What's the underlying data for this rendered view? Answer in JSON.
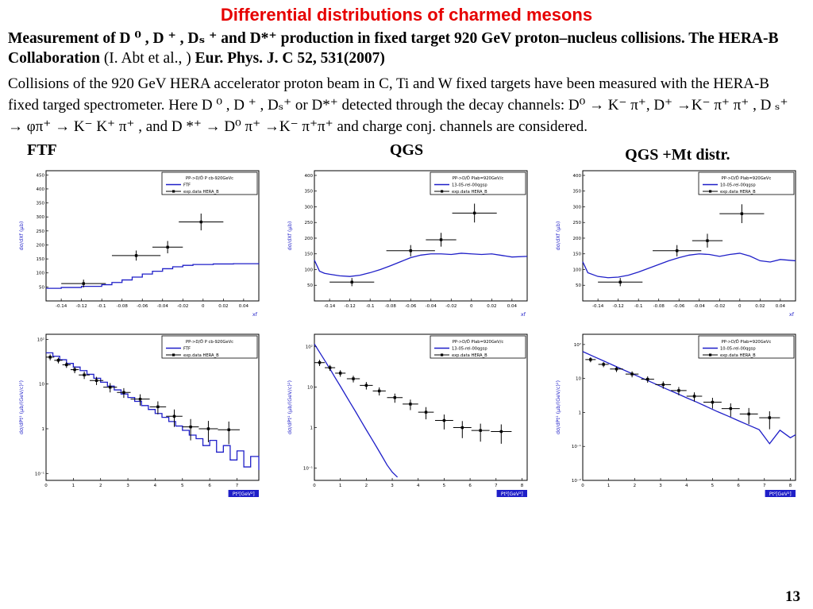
{
  "slide": {
    "title": "Differential distributions of charmed mesons",
    "page_number": "13"
  },
  "intro": {
    "bold1": "Measurement of D ⁰ , D ⁺ , Dₛ ⁺ and D*⁺ production in fixed target 920 GeV proton–nucleus collisions. The HERA-B Collaboration ",
    "authors": "(I. Abt et al., ) ",
    "journal": " Eur. Phys. J. C 52, 531(2007)",
    "description": "Collisions of the 920 GeV HERA accelerator proton beam in C, Ti and W fixed targets have been measured with the HERA-B fixed targed spectrometer. Here  D ⁰ , D ⁺ , Dₛ⁺ or D*⁺ detected through the decay channels:  D⁰ → K⁻ π⁺, D⁺ →K⁻ π⁺ π⁺ , D ₛ⁺ → φπ⁺ → K⁻ K⁺ π⁺ , and D *⁺ → D⁰ π⁺ →K⁻ π⁺π⁺  and charge conj. channels are considered."
  },
  "columns": [
    "FTF",
    "QGS",
    "QGS +Mt distr."
  ],
  "colors": {
    "accent_blue": "#1f1fc8",
    "title_red": "#e60000",
    "data_black": "#000000"
  },
  "chart_data": [
    {
      "id": "ftf-xf",
      "type": "line",
      "scale": "linear",
      "line_style": "step",
      "xlim": [
        -0.155,
        0.055
      ],
      "ylim": [
        0,
        465
      ],
      "xticks": [
        -0.14,
        -0.12,
        -0.1,
        -0.08,
        -0.06,
        -0.04,
        -0.02,
        0,
        0.02,
        0.04
      ],
      "xtick_labels": [
        "-0.14",
        "-0.12",
        "-0.1",
        "-0.08",
        "-0.06",
        "-0.04",
        "-0.02",
        "0",
        "0.02",
        "0.04"
      ],
      "ytick_values": [
        50,
        100,
        150,
        200,
        250,
        300,
        350,
        400,
        450
      ],
      "ytick_labels": [
        "50",
        "100",
        "150",
        "200",
        "250",
        "300",
        "350",
        "400",
        "450"
      ],
      "xlabel": "xf",
      "xlabel_box": false,
      "ylabel": "dσ/dXf (μb)",
      "legend": [
        "PP->D/D̄ P cb-920GeVc",
        "FTF",
        "exp.data HERA_B"
      ],
      "model_line": [
        [
          -0.155,
          45
        ],
        [
          -0.14,
          48
        ],
        [
          -0.12,
          52
        ],
        [
          -0.1,
          58
        ],
        [
          -0.09,
          66
        ],
        [
          -0.08,
          75
        ],
        [
          -0.07,
          85
        ],
        [
          -0.06,
          96
        ],
        [
          -0.05,
          106
        ],
        [
          -0.04,
          115
        ],
        [
          -0.03,
          122
        ],
        [
          -0.02,
          127
        ],
        [
          -0.01,
          130
        ],
        [
          0.01,
          132
        ],
        [
          0.03,
          133
        ],
        [
          0.055,
          132
        ]
      ],
      "data_points": [
        {
          "x": -0.118,
          "y": 62,
          "ex": 0.022,
          "ey": 14
        },
        {
          "x": -0.066,
          "y": 162,
          "ex": 0.024,
          "ey": 18
        },
        {
          "x": -0.035,
          "y": 192,
          "ex": 0.015,
          "ey": 22
        },
        {
          "x": -0.002,
          "y": 282,
          "ex": 0.022,
          "ey": 30
        }
      ]
    },
    {
      "id": "qgs-xf",
      "type": "line",
      "scale": "linear",
      "line_style": "linear",
      "xlim": [
        -0.155,
        0.055
      ],
      "ylim": [
        0,
        415
      ],
      "xticks": [
        -0.14,
        -0.12,
        -0.1,
        -0.08,
        -0.06,
        -0.04,
        -0.02,
        0,
        0.02,
        0.04
      ],
      "xtick_labels": [
        "-0.14",
        "-0.12",
        "-0.1",
        "-0.08",
        "-0.06",
        "-0.04",
        "-0.02",
        "0",
        "0.02",
        "0.04"
      ],
      "ytick_values": [
        50,
        100,
        150,
        200,
        250,
        300,
        350,
        400
      ],
      "ytick_labels": [
        "50",
        "100",
        "150",
        "200",
        "250",
        "300",
        "350",
        "400"
      ],
      "xlabel": "xf",
      "xlabel_box": false,
      "ylabel": "dσ/dXf (μb)",
      "legend": [
        "PP->D/D̄ Plab=920GeV/c",
        "13-05-rel-00qgsp",
        "exp.data HERA_B"
      ],
      "model_line": [
        [
          -0.155,
          130
        ],
        [
          -0.15,
          95
        ],
        [
          -0.145,
          88
        ],
        [
          -0.14,
          85
        ],
        [
          -0.13,
          80
        ],
        [
          -0.12,
          78
        ],
        [
          -0.11,
          82
        ],
        [
          -0.1,
          90
        ],
        [
          -0.09,
          100
        ],
        [
          -0.08,
          112
        ],
        [
          -0.07,
          125
        ],
        [
          -0.06,
          138
        ],
        [
          -0.05,
          146
        ],
        [
          -0.04,
          150
        ],
        [
          -0.03,
          150
        ],
        [
          -0.02,
          148
        ],
        [
          -0.01,
          152
        ],
        [
          0.0,
          150
        ],
        [
          0.01,
          148
        ],
        [
          0.02,
          150
        ],
        [
          0.03,
          145
        ],
        [
          0.04,
          140
        ],
        [
          0.055,
          142
        ]
      ],
      "data_points": [
        {
          "x": -0.118,
          "y": 60,
          "ex": 0.022,
          "ey": 13
        },
        {
          "x": -0.06,
          "y": 160,
          "ex": 0.024,
          "ey": 18
        },
        {
          "x": -0.03,
          "y": 195,
          "ex": 0.015,
          "ey": 22
        },
        {
          "x": 0.003,
          "y": 280,
          "ex": 0.022,
          "ey": 30
        }
      ]
    },
    {
      "id": "qgsmt-xf",
      "type": "line",
      "scale": "linear",
      "line_style": "linear",
      "xlim": [
        -0.155,
        0.055
      ],
      "ylim": [
        0,
        415
      ],
      "xticks": [
        -0.14,
        -0.12,
        -0.1,
        -0.08,
        -0.06,
        -0.04,
        -0.02,
        0,
        0.02,
        0.04
      ],
      "xtick_labels": [
        "-0.14",
        "-0.12",
        "-0.1",
        "-0.08",
        "-0.06",
        "-0.04",
        "-0.02",
        "0",
        "0.02",
        "0.04"
      ],
      "ytick_values": [
        50,
        100,
        150,
        200,
        250,
        300,
        350,
        400
      ],
      "ytick_labels": [
        "50",
        "100",
        "150",
        "200",
        "250",
        "300",
        "350",
        "400"
      ],
      "xlabel": "xf",
      "xlabel_box": false,
      "ylabel": "dσ/dXf (μb)",
      "legend": [
        "PP->D/D̄ Plab=920GeVc",
        "10-05-rel-00qgsp",
        "exp.data HERA_B"
      ],
      "model_line": [
        [
          -0.155,
          125
        ],
        [
          -0.15,
          90
        ],
        [
          -0.14,
          78
        ],
        [
          -0.13,
          74
        ],
        [
          -0.12,
          76
        ],
        [
          -0.11,
          82
        ],
        [
          -0.1,
          92
        ],
        [
          -0.09,
          104
        ],
        [
          -0.08,
          116
        ],
        [
          -0.07,
          128
        ],
        [
          -0.06,
          138
        ],
        [
          -0.05,
          146
        ],
        [
          -0.04,
          150
        ],
        [
          -0.03,
          148
        ],
        [
          -0.02,
          142
        ],
        [
          -0.01,
          148
        ],
        [
          0.0,
          152
        ],
        [
          0.01,
          143
        ],
        [
          0.02,
          128
        ],
        [
          0.03,
          124
        ],
        [
          0.04,
          132
        ],
        [
          0.055,
          128
        ]
      ],
      "data_points": [
        {
          "x": -0.118,
          "y": 60,
          "ex": 0.022,
          "ey": 13
        },
        {
          "x": -0.062,
          "y": 160,
          "ex": 0.024,
          "ey": 18
        },
        {
          "x": -0.032,
          "y": 192,
          "ex": 0.015,
          "ey": 22
        },
        {
          "x": 0.002,
          "y": 278,
          "ex": 0.022,
          "ey": 30
        }
      ]
    },
    {
      "id": "ftf-pt2",
      "type": "line",
      "scale": "log",
      "line_style": "step",
      "xlim": [
        0,
        7.8
      ],
      "ylim": [
        0.07,
        130
      ],
      "xticks": [
        0,
        1,
        2,
        3,
        4,
        5,
        6,
        7
      ],
      "xtick_labels": [
        "0",
        "1",
        "2",
        "3",
        "4",
        "5",
        "6",
        "7"
      ],
      "ytick_values": [
        100,
        10,
        1,
        0.1
      ],
      "ytick_labels": [
        "10²",
        "10",
        "1",
        "10⁻¹"
      ],
      "xlabel": "Pt²[GeV²]",
      "xlabel_box": true,
      "ylabel": "dσ/dPt² (μb/(GeV/c)²)",
      "legend": [
        "PP->D/D̄ P cb-920GeVc",
        "FTF",
        "exp.data HERA_B"
      ],
      "model_line": [
        [
          0,
          50
        ],
        [
          0.25,
          42
        ],
        [
          0.5,
          35
        ],
        [
          0.75,
          29
        ],
        [
          1,
          24
        ],
        [
          1.25,
          20
        ],
        [
          1.5,
          16.5
        ],
        [
          1.75,
          13.5
        ],
        [
          2,
          11
        ],
        [
          2.25,
          9
        ],
        [
          2.5,
          7.4
        ],
        [
          2.75,
          6
        ],
        [
          3,
          5
        ],
        [
          3.25,
          4.1
        ],
        [
          3.5,
          3.3
        ],
        [
          3.75,
          2.7
        ],
        [
          4,
          2.2
        ],
        [
          4.25,
          1.8
        ],
        [
          4.5,
          1.45
        ],
        [
          4.75,
          1.15
        ],
        [
          5,
          0.92
        ],
        [
          5.25,
          0.72
        ],
        [
          5.5,
          0.6
        ],
        [
          5.75,
          0.42
        ],
        [
          6,
          0.55
        ],
        [
          6.25,
          0.3
        ],
        [
          6.5,
          0.42
        ],
        [
          6.75,
          0.2
        ],
        [
          7,
          0.32
        ],
        [
          7.25,
          0.14
        ],
        [
          7.5,
          0.24
        ],
        [
          7.8,
          0.12
        ]
      ],
      "data_points": [
        {
          "x": 0.15,
          "y": 40,
          "ex": 0.15,
          "ey": 6
        },
        {
          "x": 0.45,
          "y": 34,
          "ex": 0.15,
          "ey": 5
        },
        {
          "x": 0.75,
          "y": 27,
          "ex": 0.15,
          "ey": 4
        },
        {
          "x": 1.05,
          "y": 21,
          "ex": 0.15,
          "ey": 3.5
        },
        {
          "x": 1.4,
          "y": 16,
          "ex": 0.2,
          "ey": 3
        },
        {
          "x": 1.85,
          "y": 12,
          "ex": 0.25,
          "ey": 2.5
        },
        {
          "x": 2.35,
          "y": 8.5,
          "ex": 0.25,
          "ey": 2
        },
        {
          "x": 2.85,
          "y": 6.5,
          "ex": 0.25,
          "ey": 1.6
        },
        {
          "x": 3.45,
          "y": 4.6,
          "ex": 0.35,
          "ey": 1.3
        },
        {
          "x": 4.1,
          "y": 3.1,
          "ex": 0.3,
          "ey": 1
        },
        {
          "x": 4.7,
          "y": 1.9,
          "ex": 0.3,
          "ey": 0.8
        },
        {
          "x": 5.3,
          "y": 1.1,
          "ex": 0.3,
          "ey": 0.55
        },
        {
          "x": 5.95,
          "y": 1.0,
          "ex": 0.35,
          "ey": 0.5
        },
        {
          "x": 6.7,
          "y": 0.95,
          "ex": 0.4,
          "ey": 0.5
        }
      ]
    },
    {
      "id": "qgs-pt2",
      "type": "line",
      "scale": "log",
      "line_style": "linear",
      "xlim": [
        0,
        8.2
      ],
      "ylim": [
        0.05,
        200
      ],
      "xticks": [
        0,
        1,
        2,
        3,
        4,
        5,
        6,
        7,
        8
      ],
      "xtick_labels": [
        "0",
        "1",
        "2",
        "3",
        "4",
        "5",
        "6",
        "7",
        "8"
      ],
      "ytick_values": [
        100,
        10,
        1,
        0.1
      ],
      "ytick_labels": [
        "10²",
        "10",
        "1",
        "10⁻¹"
      ],
      "xlabel": "Pt²[GeV²]",
      "xlabel_box": true,
      "ylabel": "dσ/dPt² (μb/(GeV/c)²)",
      "legend": [
        "PP->D/D̄ Plab=920GeV/c",
        "13-05-rel-00qgsp",
        "exp.data HERA_B"
      ],
      "model_line": [
        [
          0,
          115
        ],
        [
          0.2,
          72
        ],
        [
          0.4,
          45
        ],
        [
          0.6,
          28
        ],
        [
          0.8,
          17
        ],
        [
          1,
          10.5
        ],
        [
          1.2,
          6.4
        ],
        [
          1.4,
          3.9
        ],
        [
          1.6,
          2.4
        ],
        [
          1.8,
          1.45
        ],
        [
          2,
          0.88
        ],
        [
          2.2,
          0.54
        ],
        [
          2.4,
          0.33
        ],
        [
          2.6,
          0.2
        ],
        [
          2.8,
          0.12
        ],
        [
          3,
          0.08
        ],
        [
          3.2,
          0.06
        ]
      ],
      "data_points": [
        {
          "x": 0.2,
          "y": 40,
          "ex": 0.2,
          "ey": 7
        },
        {
          "x": 0.6,
          "y": 30,
          "ex": 0.2,
          "ey": 5
        },
        {
          "x": 1.0,
          "y": 22,
          "ex": 0.2,
          "ey": 4
        },
        {
          "x": 1.5,
          "y": 16,
          "ex": 0.25,
          "ey": 3
        },
        {
          "x": 2.0,
          "y": 11,
          "ex": 0.25,
          "ey": 2.3
        },
        {
          "x": 2.5,
          "y": 8,
          "ex": 0.25,
          "ey": 1.8
        },
        {
          "x": 3.1,
          "y": 5.5,
          "ex": 0.3,
          "ey": 1.4
        },
        {
          "x": 3.7,
          "y": 3.8,
          "ex": 0.3,
          "ey": 1.1
        },
        {
          "x": 4.3,
          "y": 2.4,
          "ex": 0.3,
          "ey": 0.8
        },
        {
          "x": 5.0,
          "y": 1.5,
          "ex": 0.35,
          "ey": 0.6
        },
        {
          "x": 5.7,
          "y": 1.0,
          "ex": 0.35,
          "ey": 0.45
        },
        {
          "x": 6.4,
          "y": 0.85,
          "ex": 0.35,
          "ey": 0.4
        },
        {
          "x": 7.2,
          "y": 0.8,
          "ex": 0.4,
          "ey": 0.4
        }
      ]
    },
    {
      "id": "qgsmt-pt2",
      "type": "line",
      "scale": "log",
      "line_style": "linear",
      "xlim": [
        0,
        8.2
      ],
      "ylim": [
        0.01,
        200
      ],
      "xticks": [
        0,
        1,
        2,
        3,
        4,
        5,
        6,
        7,
        8
      ],
      "xtick_labels": [
        "0",
        "1",
        "2",
        "3",
        "4",
        "5",
        "6",
        "7",
        "8"
      ],
      "ytick_values": [
        100,
        10,
        1,
        0.1,
        0.01
      ],
      "ytick_labels": [
        "10²",
        "10",
        "1",
        "10⁻¹",
        "10⁻²"
      ],
      "xlabel": "Pt²[GeV²]",
      "xlabel_box": true,
      "ylabel": "dσ/dPt² (μb/(GeV/c)²)",
      "legend": [
        "PP->D/D̄ Plab=920GeVc",
        "10-05-rel-00qgsp",
        "exp.data HERA_B"
      ],
      "model_line": [
        [
          0,
          62
        ],
        [
          0.4,
          45
        ],
        [
          0.8,
          33
        ],
        [
          1.2,
          24
        ],
        [
          1.6,
          17.5
        ],
        [
          2,
          12.8
        ],
        [
          2.4,
          9.4
        ],
        [
          2.8,
          6.9
        ],
        [
          3.2,
          5
        ],
        [
          3.6,
          3.7
        ],
        [
          4,
          2.7
        ],
        [
          4.4,
          2
        ],
        [
          4.8,
          1.45
        ],
        [
          5.2,
          1.05
        ],
        [
          5.6,
          0.78
        ],
        [
          6,
          0.57
        ],
        [
          6.4,
          0.42
        ],
        [
          6.8,
          0.31
        ],
        [
          7.2,
          0.12
        ],
        [
          7.6,
          0.3
        ],
        [
          8,
          0.18
        ],
        [
          8.2,
          0.22
        ]
      ],
      "data_points": [
        {
          "x": 0.3,
          "y": 36,
          "ex": 0.2,
          "ey": 6
        },
        {
          "x": 0.8,
          "y": 26,
          "ex": 0.2,
          "ey": 4.5
        },
        {
          "x": 1.3,
          "y": 19,
          "ex": 0.25,
          "ey": 3.5
        },
        {
          "x": 1.9,
          "y": 13.5,
          "ex": 0.25,
          "ey": 2.7
        },
        {
          "x": 2.5,
          "y": 9.5,
          "ex": 0.25,
          "ey": 2
        },
        {
          "x": 3.1,
          "y": 6.6,
          "ex": 0.3,
          "ey": 1.6
        },
        {
          "x": 3.7,
          "y": 4.4,
          "ex": 0.3,
          "ey": 1.2
        },
        {
          "x": 4.3,
          "y": 3.0,
          "ex": 0.3,
          "ey": 0.9
        },
        {
          "x": 5.0,
          "y": 2.0,
          "ex": 0.35,
          "ey": 0.7
        },
        {
          "x": 5.7,
          "y": 1.3,
          "ex": 0.35,
          "ey": 0.55
        },
        {
          "x": 6.4,
          "y": 0.9,
          "ex": 0.35,
          "ey": 0.45
        },
        {
          "x": 7.2,
          "y": 0.7,
          "ex": 0.4,
          "ey": 0.38
        }
      ]
    }
  ]
}
